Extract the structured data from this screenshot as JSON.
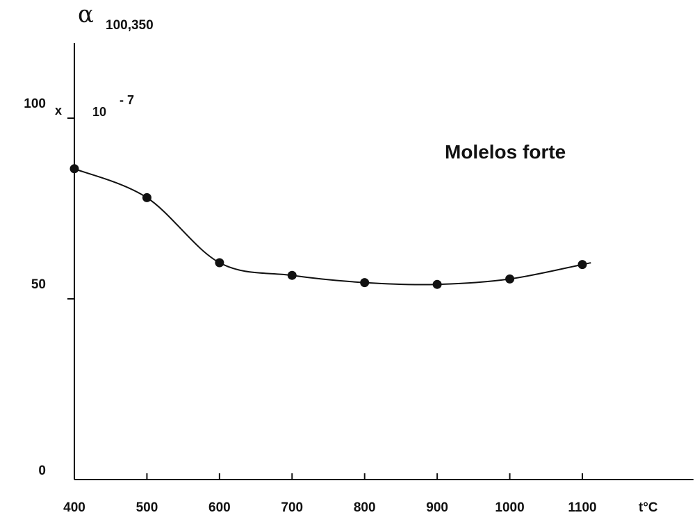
{
  "chart_data": {
    "type": "line",
    "title": "Molelos forte",
    "ylabel_symbol": "α",
    "ylabel_subscript": "100,350",
    "ylabel_multiplier_x": "x",
    "ylabel_multiplier_base": "10",
    "ylabel_multiplier_exp": "- 7",
    "xlabel": "t°C",
    "x": [
      400,
      500,
      600,
      700,
      800,
      900,
      1000,
      1100
    ],
    "y": [
      86,
      78,
      60,
      56.5,
      54.5,
      54,
      55.5,
      59.5
    ],
    "x_ticks": [
      400,
      500,
      600,
      700,
      800,
      900,
      1000,
      1100
    ],
    "x_tick_labels": [
      "400",
      "500",
      "600",
      "700",
      "800",
      "900",
      "1000",
      "1100"
    ],
    "y_ticks": [
      0,
      50,
      100
    ],
    "y_tick_labels": [
      "0",
      "50",
      "100"
    ],
    "xlim": [
      400,
      1250
    ],
    "ylim": [
      0,
      124
    ],
    "grid": false,
    "curve": "smooth",
    "marker": "filled-circle"
  }
}
